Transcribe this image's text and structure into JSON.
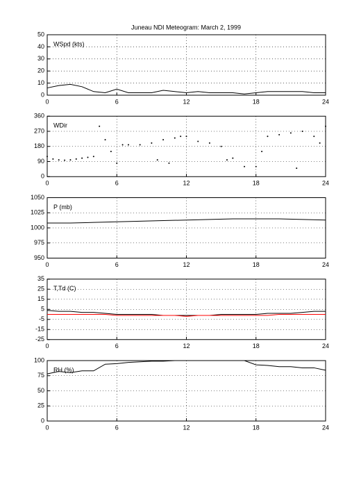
{
  "title": "Juneau NDI Meteogram:     March  2, 1999",
  "chart_data": [
    {
      "type": "line",
      "label": "WSpd (kts)",
      "xlim": [
        0,
        24
      ],
      "xticks": [
        0,
        6,
        12,
        18,
        24
      ],
      "ylim": [
        0,
        50
      ],
      "yticks": [
        0,
        10,
        20,
        30,
        40,
        50
      ],
      "grid": true,
      "color": "#000000",
      "x": [
        0,
        1,
        2,
        3,
        4,
        5,
        6,
        7,
        8,
        9,
        10,
        11,
        12,
        13,
        14,
        15,
        16,
        17,
        18,
        19,
        20,
        21,
        22,
        23,
        24
      ],
      "values": [
        6,
        8,
        9,
        7,
        3,
        2,
        5,
        2,
        2,
        2,
        4,
        3,
        2,
        3,
        2,
        2,
        2,
        1,
        2,
        3,
        3,
        3,
        3,
        2,
        2
      ]
    },
    {
      "type": "scatter",
      "label": "WDir",
      "xlim": [
        0,
        24
      ],
      "xticks": [
        0,
        6,
        12,
        18,
        24
      ],
      "ylim": [
        0,
        360
      ],
      "yticks": [
        0,
        90,
        180,
        270,
        360
      ],
      "grid": true,
      "color": "#000000",
      "x": [
        0,
        0.5,
        1,
        1.5,
        2,
        2.5,
        3,
        3.5,
        4,
        4.5,
        5,
        5.5,
        6,
        6.5,
        7,
        8,
        9,
        9.5,
        10,
        10.5,
        11,
        11.5,
        12,
        13,
        14,
        15,
        15.5,
        16,
        17,
        18,
        18.5,
        19,
        20,
        21,
        21.5,
        22,
        23,
        23.5,
        24
      ],
      "values": [
        120,
        105,
        100,
        98,
        100,
        105,
        110,
        115,
        120,
        300,
        220,
        150,
        80,
        190,
        190,
        190,
        200,
        100,
        220,
        80,
        230,
        240,
        240,
        210,
        200,
        180,
        100,
        110,
        60,
        60,
        150,
        240,
        250,
        260,
        50,
        270,
        240,
        200,
        300
      ]
    },
    {
      "type": "line",
      "label": "P (mb)",
      "xlim": [
        0,
        24
      ],
      "xticks": [
        0,
        6,
        12,
        18,
        24
      ],
      "ylim": [
        950,
        1050
      ],
      "yticks": [
        950,
        975,
        1000,
        1025,
        1050
      ],
      "grid": true,
      "color": "#000000",
      "x": [
        0,
        2,
        4,
        6,
        8,
        10,
        12,
        14,
        16,
        18,
        20,
        22,
        24
      ],
      "values": [
        1008,
        1008,
        1009,
        1010,
        1011,
        1012,
        1013,
        1014,
        1015,
        1015,
        1015,
        1014,
        1013
      ]
    },
    {
      "type": "line",
      "label": "T,Td (C)",
      "xlim": [
        0,
        24
      ],
      "xticks": [
        0,
        6,
        12,
        18,
        24
      ],
      "ylim": [
        -25,
        35
      ],
      "yticks": [
        -25,
        -15,
        -5,
        5,
        15,
        25,
        35
      ],
      "grid": true,
      "x": [
        0,
        1,
        2,
        3,
        4,
        5,
        6,
        7,
        8,
        9,
        10,
        11,
        12,
        13,
        14,
        15,
        16,
        17,
        18,
        19,
        20,
        21,
        22,
        23,
        24
      ],
      "series": [
        {
          "color": "#000000",
          "values": [
            4,
            3,
            3,
            2,
            2,
            1,
            0,
            0,
            0,
            0,
            -1,
            -1,
            -1,
            -1,
            -1,
            0,
            0,
            0,
            0,
            1,
            1,
            1,
            2,
            3,
            3
          ]
        },
        {
          "color": "#ff0000",
          "values": [
            0,
            0,
            0,
            0,
            0,
            0,
            -1,
            -1,
            -1,
            -1,
            -1,
            -1,
            -2,
            -1,
            -1,
            -1,
            -1,
            -1,
            -1,
            -1,
            0,
            0,
            0,
            0,
            0
          ]
        }
      ]
    },
    {
      "type": "line",
      "label": "RH (%)",
      "xlim": [
        0,
        24
      ],
      "xticks": [
        0,
        6,
        12,
        18,
        24
      ],
      "ylim": [
        0,
        100
      ],
      "yticks": [
        0,
        25,
        50,
        75,
        100
      ],
      "grid": true,
      "color": "#000000",
      "x": [
        0,
        1,
        2,
        3,
        4,
        5,
        6,
        7,
        8,
        9,
        10,
        11,
        12,
        13,
        14,
        15,
        16,
        17,
        18,
        19,
        20,
        21,
        22,
        23,
        24
      ],
      "values": [
        78,
        82,
        80,
        83,
        83,
        94,
        95,
        97,
        98,
        99,
        99,
        100,
        100,
        100,
        100,
        100,
        100,
        100,
        93,
        92,
        90,
        90,
        88,
        88,
        84
      ]
    }
  ]
}
